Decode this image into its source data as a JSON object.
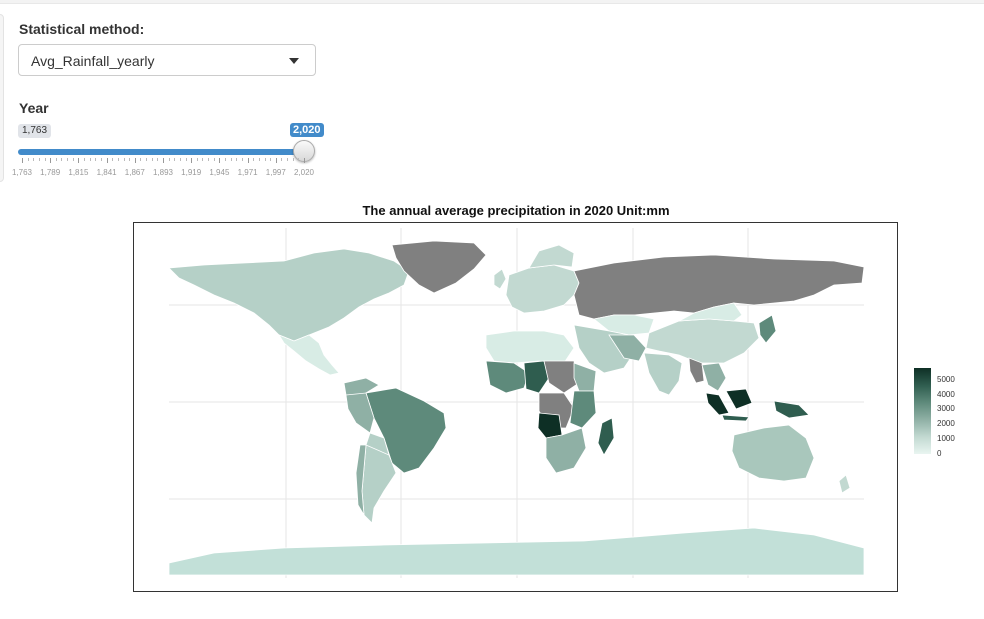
{
  "controls": {
    "method_label": "Statistical method:",
    "method_value": "Avg_Rainfall_yearly",
    "year_label": "Year",
    "year_min": "1,763",
    "year_max": "2,020",
    "year_selected_fraction": 1.0,
    "ticks": [
      "1,763",
      "1,789",
      "1,815",
      "1,841",
      "1,867",
      "1,893",
      "1,919",
      "1,945",
      "1,971",
      "1,997",
      "2,020"
    ]
  },
  "chart_data": {
    "type": "choropleth",
    "title": "The annual average precipitation in 2020 Unit:mm",
    "legend": {
      "labels": [
        "5000",
        "4000",
        "3000",
        "2000",
        "1000",
        "0"
      ],
      "placement": "right",
      "low_color": "#e9f5f1",
      "high_color": "#0e2f25",
      "missing_color": "#808080"
    },
    "grid": true
  }
}
